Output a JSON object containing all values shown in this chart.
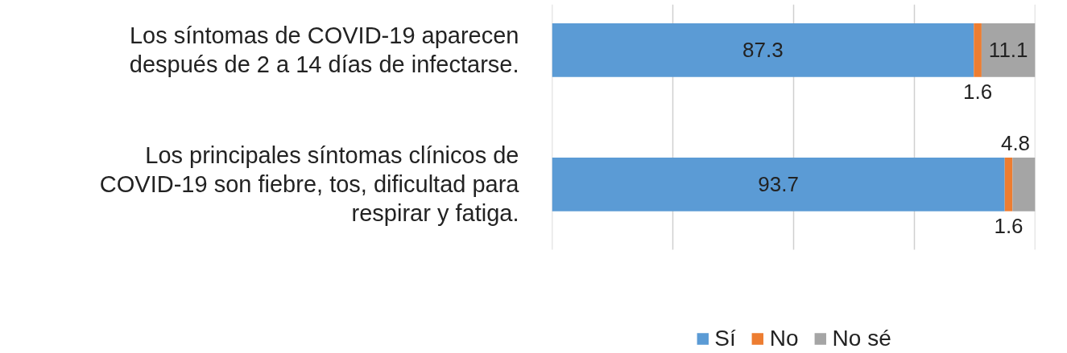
{
  "chart_data": {
    "type": "bar",
    "orientation": "horizontal",
    "stacked": true,
    "categories": [
      "Los síntomas de COVID-19 aparecen\ndespués de 2 a 14 días de infectarse.",
      "Los principales síntomas clínicos de\nCOVID-19 son fiebre, tos, dificultad para\nrespirar y fatiga."
    ],
    "series": [
      {
        "name": "Sí",
        "color": "#5b9bd5",
        "values": [
          87.3,
          93.7
        ]
      },
      {
        "name": "No",
        "color": "#ed7d31",
        "values": [
          1.6,
          1.6
        ]
      },
      {
        "name": "No sé",
        "color": "#a5a5a5",
        "values": [
          11.1,
          4.8
        ]
      }
    ],
    "xlim": [
      0,
      100
    ],
    "xticks": [
      {
        "value": 0,
        "label": null
      },
      {
        "value": 25,
        "label": null
      },
      {
        "value": 50,
        "label": null
      },
      {
        "value": 75,
        "label": null
      },
      {
        "value": 100,
        "label": null
      }
    ],
    "tick_labels": "y",
    "grid": "x",
    "legend": "bottom",
    "data_labels": true
  }
}
